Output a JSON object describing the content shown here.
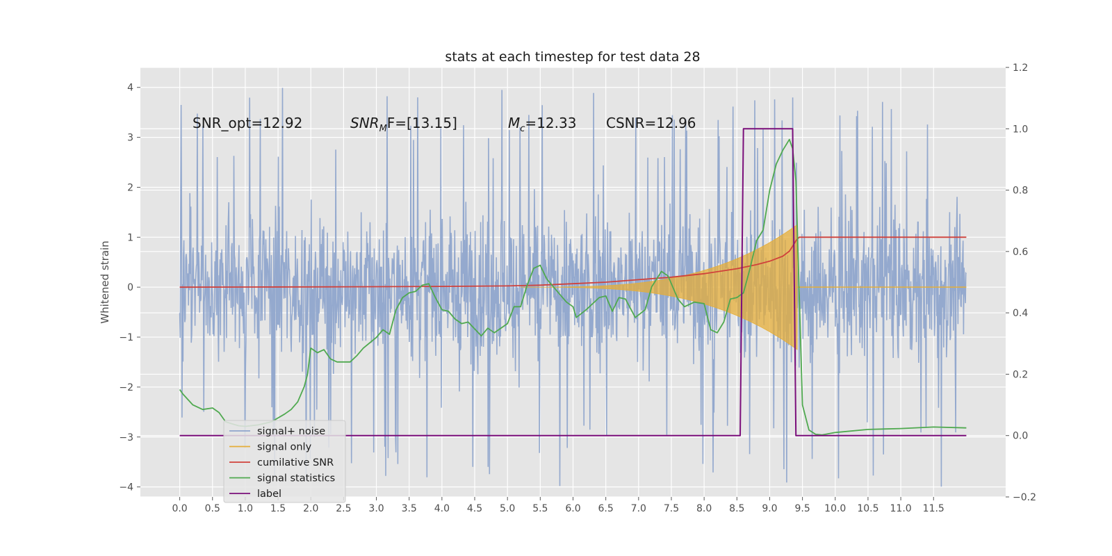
{
  "chart_data": {
    "type": "line",
    "title": "stats at each timestep for test data 28",
    "ylabel": "Whitened strain",
    "xlim": [
      -0.6,
      12.6
    ],
    "ylim": [
      -4.2,
      4.4
    ],
    "y2lim": [
      -0.2,
      1.2
    ],
    "x_ticks": [
      0.0,
      0.5,
      1.0,
      1.5,
      2.0,
      2.5,
      3.0,
      3.5,
      4.0,
      4.5,
      5.0,
      5.5,
      6.0,
      6.5,
      7.0,
      7.5,
      8.0,
      8.5,
      9.0,
      9.5,
      10.0,
      10.5,
      11.0,
      11.5
    ],
    "x_tick_labels": [
      "0.0",
      "0.5",
      "1.0",
      "1.5",
      "2.0",
      "2.5",
      "3.0",
      "3.5",
      "4.0",
      "4.5",
      "5.0",
      "5.5",
      "6.0",
      "6.5",
      "7.0",
      "7.5",
      "8.0",
      "8.5",
      "9.0",
      "9.5",
      "10.0",
      "10.5",
      "11.0",
      "11.5"
    ],
    "y_ticks": [
      -4,
      -3,
      -2,
      -1,
      0,
      1,
      2,
      3,
      4
    ],
    "y_tick_labels": [
      "−4",
      "−3",
      "−2",
      "−1",
      "0",
      "1",
      "2",
      "3",
      "4"
    ],
    "y2_ticks": [
      -0.2,
      0.0,
      0.2,
      0.4,
      0.6,
      0.8,
      1.0,
      1.2
    ],
    "y2_tick_labels": [
      "−0.2",
      "0.0",
      "0.2",
      "0.4",
      "0.6",
      "0.8",
      "1.0",
      "1.2"
    ],
    "grid": true,
    "legend_position": "lower-left",
    "annotations": {
      "snr_opt": "SNR_opt=12.92",
      "snr_mf_main": "SNR",
      "snr_mf_sub": "M",
      "snr_mf_rest": "F=[13.15]",
      "mc_main": "M",
      "mc_sub": "c",
      "mc_rest": "=12.33",
      "csnr": "CSNR=12.96"
    },
    "series": [
      {
        "name": "signal+ noise",
        "axis": "left",
        "color": "#8fa5cc",
        "style": "dense noise, amplitude envelope about ±2.3 with spikes to about ±4.1",
        "x_range": [
          0.0,
          12.0
        ]
      },
      {
        "name": "signal only",
        "axis": "left",
        "color": "#e5ae38",
        "style": "chirp, amplitude grows from 0 near x=5.2 to about ±1.25 at x=9.4, then 0",
        "x_range": [
          0.0,
          12.0
        ]
      },
      {
        "name": "cumilative SNR",
        "axis": "left",
        "color": "#d0413b",
        "x": [
          0.0,
          1.0,
          2.0,
          3.0,
          4.0,
          5.0,
          5.5,
          6.0,
          6.5,
          7.0,
          7.5,
          8.0,
          8.5,
          8.8,
          9.0,
          9.2,
          9.3,
          9.35,
          9.4,
          9.45,
          12.0
        ],
        "values": [
          0.0,
          0.002,
          0.005,
          0.01,
          0.015,
          0.025,
          0.04,
          0.07,
          0.1,
          0.15,
          0.2,
          0.27,
          0.37,
          0.45,
          0.52,
          0.62,
          0.72,
          0.82,
          0.93,
          1.0,
          1.0
        ]
      },
      {
        "name": "signal statistics",
        "axis": "right",
        "color": "#4fa94f",
        "x": [
          0.0,
          0.05,
          0.2,
          0.35,
          0.5,
          0.6,
          0.7,
          0.8,
          0.9,
          1.0,
          1.2,
          1.4,
          1.6,
          1.7,
          1.8,
          1.9,
          1.95,
          2.0,
          2.1,
          2.2,
          2.3,
          2.4,
          2.6,
          2.7,
          2.8,
          3.0,
          3.1,
          3.2,
          3.3,
          3.4,
          3.5,
          3.6,
          3.7,
          3.8,
          3.9,
          4.0,
          4.1,
          4.2,
          4.3,
          4.4,
          4.6,
          4.7,
          4.8,
          5.0,
          5.1,
          5.2,
          5.3,
          5.4,
          5.5,
          5.6,
          5.8,
          5.9,
          6.0,
          6.05,
          6.2,
          6.4,
          6.5,
          6.6,
          6.7,
          6.8,
          6.95,
          7.1,
          7.2,
          7.35,
          7.45,
          7.6,
          7.7,
          7.85,
          8.0,
          8.1,
          8.2,
          8.3,
          8.4,
          8.5,
          8.6,
          8.7,
          8.8,
          8.9,
          9.0,
          9.1,
          9.2,
          9.3,
          9.35,
          9.4,
          9.5,
          9.6,
          9.7,
          9.8,
          10.0,
          10.5,
          11.0,
          11.5,
          12.0
        ],
        "values": [
          0.15,
          0.135,
          0.1,
          0.085,
          0.09,
          0.075,
          0.045,
          0.038,
          0.032,
          0.03,
          0.035,
          0.045,
          0.07,
          0.085,
          0.11,
          0.16,
          0.2,
          0.285,
          0.27,
          0.28,
          0.25,
          0.24,
          0.24,
          0.26,
          0.285,
          0.32,
          0.345,
          0.33,
          0.41,
          0.45,
          0.465,
          0.47,
          0.49,
          0.495,
          0.45,
          0.41,
          0.405,
          0.38,
          0.365,
          0.37,
          0.325,
          0.35,
          0.335,
          0.365,
          0.42,
          0.42,
          0.49,
          0.545,
          0.555,
          0.51,
          0.46,
          0.435,
          0.42,
          0.385,
          0.41,
          0.45,
          0.455,
          0.405,
          0.45,
          0.445,
          0.385,
          0.41,
          0.485,
          0.535,
          0.52,
          0.445,
          0.42,
          0.435,
          0.43,
          0.345,
          0.335,
          0.37,
          0.445,
          0.45,
          0.465,
          0.545,
          0.635,
          0.67,
          0.8,
          0.885,
          0.93,
          0.965,
          0.935,
          0.83,
          0.1,
          0.018,
          0.004,
          0.002,
          0.01,
          0.02,
          0.023,
          0.028,
          0.025
        ]
      },
      {
        "name": "label",
        "axis": "right",
        "color": "#7b0f7b",
        "x": [
          0.0,
          8.55,
          8.6,
          9.35,
          9.4,
          12.0
        ],
        "values": [
          0.0,
          0.0,
          1.0,
          1.0,
          0.0,
          0.0
        ]
      }
    ]
  }
}
